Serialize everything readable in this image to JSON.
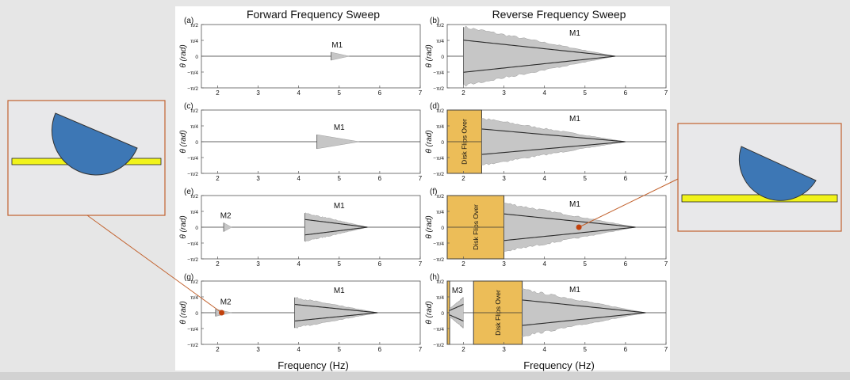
{
  "figure": {
    "columns": [
      "Forward Frequency Sweep",
      "Reverse Frequency Sweep"
    ],
    "xlabel": "Frequency (Hz)",
    "ylabel": "θ (rad)",
    "flip_label": "Disk Flips Over",
    "colors": {
      "envelope": "#c6c6c6",
      "trace": "#2b2b2b",
      "flip_box": "#ecbd58",
      "flip_border": "#404040",
      "callout": "#c2622e",
      "marker": "#c2410c",
      "disk": "#3d77b5",
      "surface": "#f1f31b"
    }
  },
  "chart_data": [
    {
      "panel": "(a)",
      "type": "area",
      "xlim": [
        1.6,
        7
      ],
      "ylim": [
        -1.5708,
        1.5708
      ],
      "xticks": [
        2,
        3,
        4,
        5,
        6,
        7
      ],
      "yticklabels": [
        "π/2",
        "π/4",
        "0",
        "−π/4",
        "−π/2"
      ],
      "envelopes": [
        {
          "name": "M1",
          "label_x": 4.95,
          "start_hz": 4.8,
          "end_hz": 5.25,
          "amp": 0.2,
          "dense": false
        }
      ],
      "flip_regions": []
    },
    {
      "panel": "(b)",
      "type": "area",
      "xlim": [
        1.6,
        7
      ],
      "ylim": [
        -1.5708,
        1.5708
      ],
      "xticks": [
        2,
        3,
        4,
        5,
        6,
        7
      ],
      "yticklabels": [
        "π/2",
        "π/4",
        "0",
        "−π/4",
        "−π/2"
      ],
      "envelopes": [
        {
          "name": "M1",
          "label_x": 4.75,
          "start_hz": 2.0,
          "end_hz": 5.75,
          "amp": 1.45,
          "dense": true
        }
      ],
      "flip_regions": []
    },
    {
      "panel": "(c)",
      "type": "area",
      "xlim": [
        1.6,
        7
      ],
      "ylim": [
        -1.5708,
        1.5708
      ],
      "xticks": [
        2,
        3,
        4,
        5,
        6,
        7
      ],
      "yticklabels": [
        "π/2",
        "π/4",
        "0",
        "−π/4",
        "−π/2"
      ],
      "envelopes": [
        {
          "name": "M1",
          "label_x": 5.0,
          "start_hz": 4.45,
          "end_hz": 5.5,
          "amp": 0.35,
          "dense": false
        }
      ],
      "flip_regions": []
    },
    {
      "panel": "(d)",
      "type": "area",
      "xlim": [
        1.6,
        7
      ],
      "ylim": [
        -1.5708,
        1.5708
      ],
      "xticks": [
        2,
        3,
        4,
        5,
        6,
        7
      ],
      "yticklabels": [
        "π/2",
        "π/4",
        "0",
        "−π/4",
        "−π/2"
      ],
      "envelopes": [
        {
          "name": "M1",
          "label_x": 4.75,
          "start_hz": 2.45,
          "end_hz": 6.0,
          "amp": 1.15,
          "dense": true
        }
      ],
      "flip_regions": [
        {
          "start_hz": 1.6,
          "end_hz": 2.45,
          "text": "Disk Flips Over"
        }
      ]
    },
    {
      "panel": "(e)",
      "type": "area",
      "xlim": [
        1.6,
        7
      ],
      "ylim": [
        -1.5708,
        1.5708
      ],
      "xticks": [
        2,
        3,
        4,
        5,
        6,
        7
      ],
      "yticklabels": [
        "π/2",
        "π/4",
        "0",
        "−π/4",
        "−π/2"
      ],
      "envelopes": [
        {
          "name": "M2",
          "label_x": 2.2,
          "start_hz": 2.15,
          "end_hz": 2.35,
          "amp": 0.22,
          "dense": false
        },
        {
          "name": "M1",
          "label_x": 5.0,
          "start_hz": 4.15,
          "end_hz": 5.7,
          "amp": 0.7,
          "dense": true
        }
      ],
      "flip_regions": []
    },
    {
      "panel": "(f)",
      "type": "area",
      "xlim": [
        1.6,
        7
      ],
      "ylim": [
        -1.5708,
        1.5708
      ],
      "xticks": [
        2,
        3,
        4,
        5,
        6,
        7
      ],
      "yticklabels": [
        "π/2",
        "π/4",
        "0",
        "−π/4",
        "−π/2"
      ],
      "envelopes": [
        {
          "name": "M1",
          "label_x": 4.75,
          "start_hz": 3.0,
          "end_hz": 6.25,
          "amp": 1.2,
          "dense": true
        }
      ],
      "flip_regions": [
        {
          "start_hz": 1.6,
          "end_hz": 3.0,
          "text": "Disk Flips Over"
        }
      ]
    },
    {
      "panel": "(g)",
      "type": "area",
      "xlim": [
        1.6,
        7
      ],
      "ylim": [
        -1.5708,
        1.5708
      ],
      "xticks": [
        2,
        3,
        4,
        5,
        6,
        7
      ],
      "yticklabels": [
        "π/2",
        "π/4",
        "0",
        "−π/4",
        "−π/2"
      ],
      "envelopes": [
        {
          "name": "M2",
          "label_x": 2.2,
          "start_hz": 1.95,
          "end_hz": 2.35,
          "amp": 0.18,
          "dense": false
        },
        {
          "name": "M1",
          "label_x": 5.0,
          "start_hz": 3.9,
          "end_hz": 5.95,
          "amp": 0.75,
          "dense": true
        }
      ],
      "flip_regions": []
    },
    {
      "panel": "(h)",
      "type": "area",
      "xlim": [
        1.6,
        7
      ],
      "ylim": [
        -1.5708,
        1.5708
      ],
      "xticks": [
        2,
        3,
        4,
        5,
        6,
        7
      ],
      "yticklabels": [
        "π/2",
        "π/4",
        "0",
        "−π/4",
        "−π/2"
      ],
      "envelopes": [
        {
          "name": "M3",
          "label_x": 1.85,
          "start_hz": 1.65,
          "end_hz": 2.0,
          "amp": 0.75,
          "dense": true,
          "reverse": true
        },
        {
          "name": "M1",
          "label_x": 4.75,
          "start_hz": 3.45,
          "end_hz": 6.5,
          "amp": 1.15,
          "dense": true
        }
      ],
      "flip_regions": [
        {
          "start_hz": 1.6,
          "end_hz": 1.66,
          "text": ""
        },
        {
          "start_hz": 2.25,
          "end_hz": 3.45,
          "text": "Disk Flips Over"
        }
      ]
    }
  ],
  "callouts": [
    {
      "target_panel": "(g)",
      "target_hz": 2.1,
      "disk_state": "upright",
      "side": "left"
    },
    {
      "target_panel": "(f)",
      "target_hz": 4.85,
      "disk_state": "tilted",
      "side": "right"
    }
  ]
}
